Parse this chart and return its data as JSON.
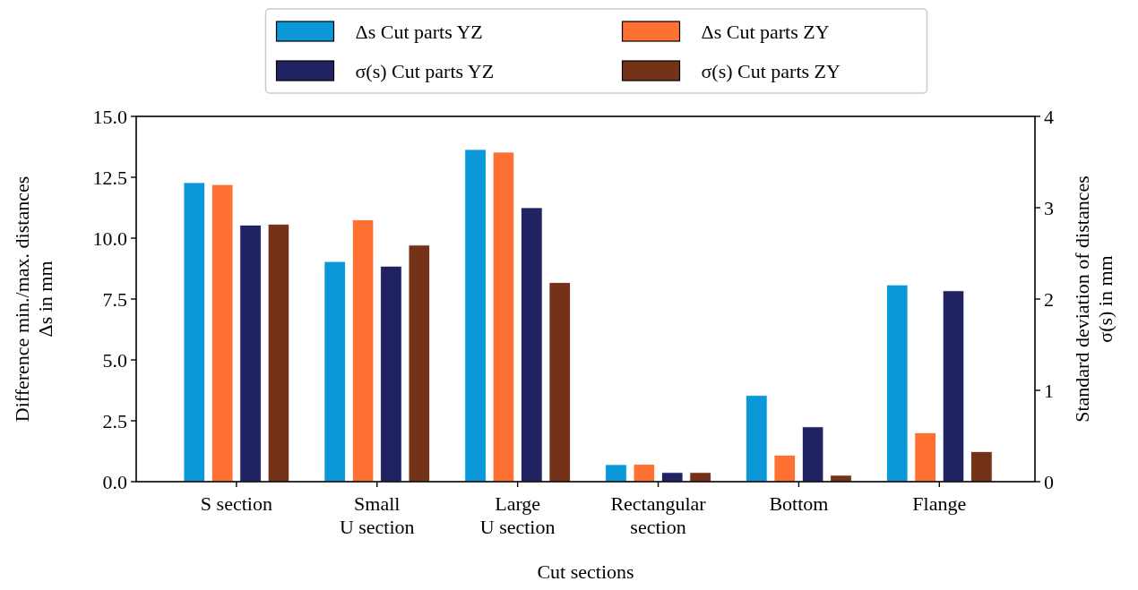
{
  "chart_data": {
    "type": "bar",
    "xlabel": "Cut sections",
    "ylabel": "Difference min./max. distances\nΔs in mm",
    "y2label": "Standard deviation of distances\nσ(s) in mm",
    "categories": [
      "S section",
      "Small\nU section",
      "Large\nU section",
      "Rectangular\nsection",
      "Bottom",
      "Flange"
    ],
    "series": [
      {
        "name": "Δs Cut parts YZ",
        "color": "#0a98d9",
        "values": [
          12.28,
          9.04,
          13.64,
          0.7,
          3.54,
          8.08
        ]
      },
      {
        "name": "Δs Cut parts ZY",
        "color": "#ff7033",
        "values": [
          12.2,
          10.75,
          13.53,
          0.71,
          1.09,
          2.01
        ]
      },
      {
        "name": "σ(s) Cut parts YZ",
        "color": "#202262",
        "axis": "y2",
        "values": [
          2.81,
          2.36,
          3.0,
          0.1,
          0.6,
          2.09
        ]
      },
      {
        "name": "σ(s) Cut parts ZY",
        "color": "#743318",
        "axis": "y2",
        "values": [
          2.82,
          2.59,
          2.18,
          0.1,
          0.07,
          0.33
        ]
      }
    ],
    "ylim": [
      0,
      15
    ],
    "yticks": [
      {
        "value": 0,
        "label": "0.0"
      },
      {
        "value": 2.5,
        "label": "2.5"
      },
      {
        "value": 5,
        "label": "5.0"
      },
      {
        "value": 7.5,
        "label": "7.5"
      },
      {
        "value": 10,
        "label": "10.0"
      },
      {
        "value": 12.5,
        "label": "12.5"
      },
      {
        "value": 15,
        "label": "15.0"
      }
    ],
    "y2lim": [
      0,
      4
    ],
    "y2ticks": [
      0,
      1,
      2,
      3,
      4
    ],
    "legend": "top",
    "grid": false
  }
}
